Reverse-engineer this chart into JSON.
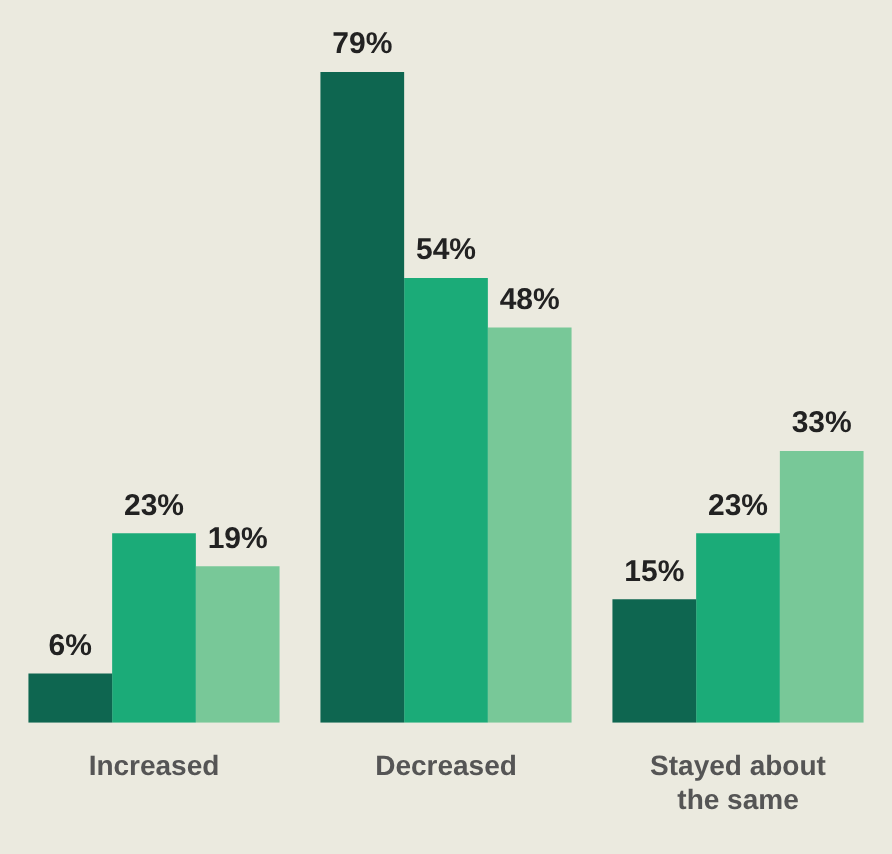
{
  "chart_data": {
    "type": "bar",
    "categories": [
      "Increased",
      "Decreased",
      "Stayed about the same"
    ],
    "series": [
      {
        "color": "#0e6650",
        "values": [
          6,
          79,
          15
        ],
        "value_labels": [
          "6%",
          "79%",
          "15%"
        ]
      },
      {
        "color": "#1bab78",
        "values": [
          23,
          54,
          23
        ],
        "value_labels": [
          "23%",
          "54%",
          "23%"
        ]
      },
      {
        "color": "#78c898",
        "values": [
          19,
          48,
          33
        ],
        "value_labels": [
          "19%",
          "48%",
          "33%"
        ]
      }
    ],
    "legend": false,
    "grid": false
  }
}
